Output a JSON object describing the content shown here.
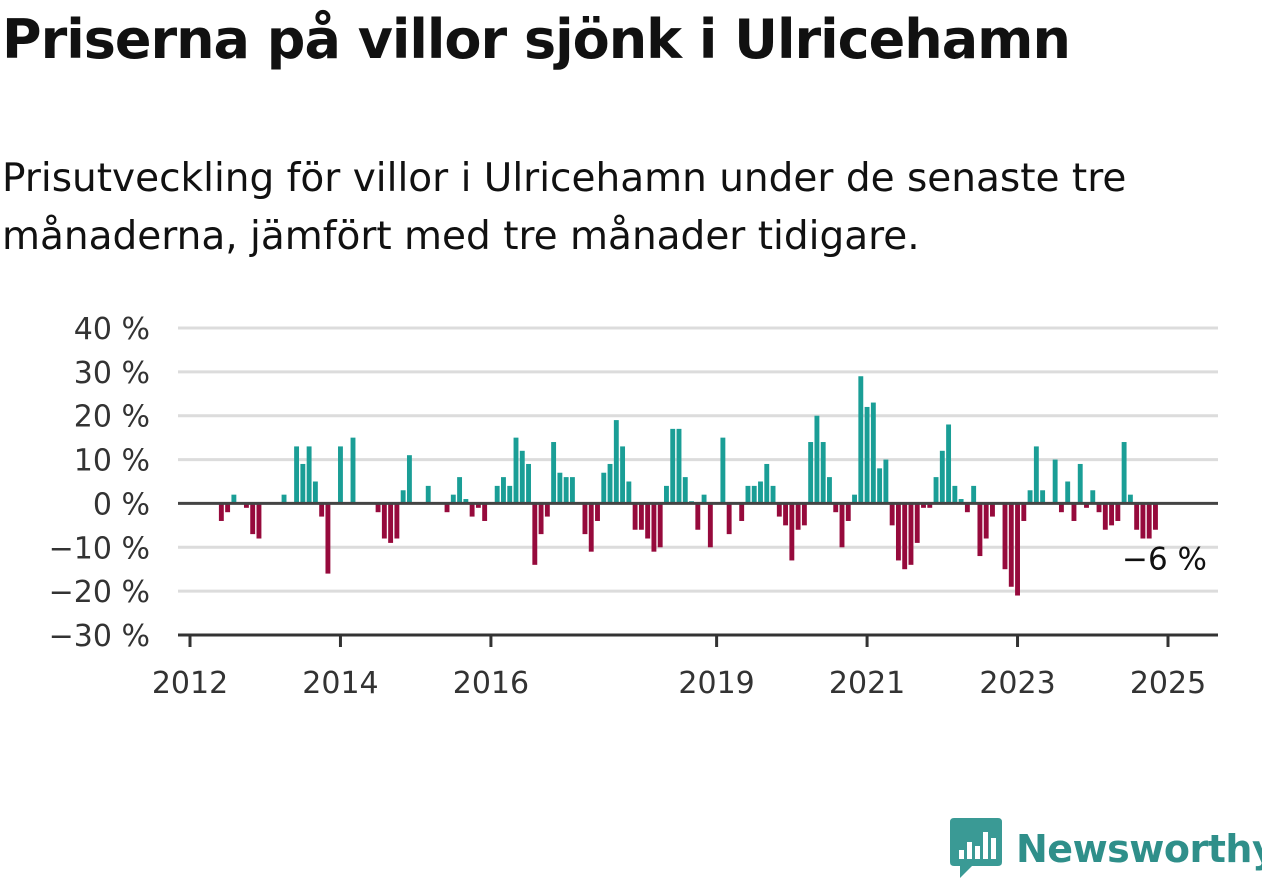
{
  "header": {
    "title": "Priserna på villor sjönk i Ulricehamn",
    "subtitle": "Prisutveckling för villor i Ulricehamn under de senaste tre månaderna, jämfört med tre månader tidigare."
  },
  "brand": {
    "name": "Newsworthy",
    "color": "#3a9a95"
  },
  "chart_data": {
    "type": "bar",
    "title": "",
    "xlabel": "",
    "ylabel": "",
    "ylim": [
      -30,
      40
    ],
    "y_ticks": [
      40,
      30,
      20,
      10,
      0,
      -10,
      -20,
      -30
    ],
    "y_tick_labels": [
      "40 %",
      "30 %",
      "20 %",
      "10 %",
      "0 %",
      "−10 %",
      "−20 %",
      "−30 %"
    ],
    "x_ticks": [
      2012,
      2014,
      2016,
      2019,
      2021,
      2023,
      2025
    ],
    "x_tick_labels": [
      "2012",
      "2014",
      "2016",
      "2019",
      "2021",
      "2023",
      "2025"
    ],
    "grid": true,
    "positive_color": "#1a9e96",
    "negative_color": "#960a3c",
    "annotation": {
      "text": "−6 %"
    },
    "series": [
      {
        "values": [
          {
            "date": "2012-06",
            "value": -4
          },
          {
            "date": "2012-07",
            "value": -2
          },
          {
            "date": "2012-08",
            "value": 2
          },
          {
            "date": "2012-10",
            "value": -1
          },
          {
            "date": "2012-11",
            "value": -7
          },
          {
            "date": "2012-12",
            "value": -8
          },
          {
            "date": "2013-04",
            "value": 2
          },
          {
            "date": "2013-06",
            "value": 13
          },
          {
            "date": "2013-07",
            "value": 9
          },
          {
            "date": "2013-08",
            "value": 13
          },
          {
            "date": "2013-09",
            "value": 5
          },
          {
            "date": "2013-10",
            "value": -3
          },
          {
            "date": "2013-11",
            "value": -16
          },
          {
            "date": "2014-01",
            "value": 13
          },
          {
            "date": "2014-03",
            "value": 15
          },
          {
            "date": "2014-07",
            "value": -2
          },
          {
            "date": "2014-08",
            "value": -8
          },
          {
            "date": "2014-09",
            "value": -9
          },
          {
            "date": "2014-10",
            "value": -8
          },
          {
            "date": "2014-11",
            "value": 3
          },
          {
            "date": "2014-12",
            "value": 11
          },
          {
            "date": "2015-03",
            "value": 4
          },
          {
            "date": "2015-06",
            "value": -2
          },
          {
            "date": "2015-07",
            "value": 2
          },
          {
            "date": "2015-08",
            "value": 6
          },
          {
            "date": "2015-09",
            "value": 1
          },
          {
            "date": "2015-10",
            "value": -3
          },
          {
            "date": "2015-11",
            "value": -1
          },
          {
            "date": "2015-12",
            "value": -4
          },
          {
            "date": "2016-02",
            "value": 4
          },
          {
            "date": "2016-03",
            "value": 6
          },
          {
            "date": "2016-04",
            "value": 4
          },
          {
            "date": "2016-05",
            "value": 15
          },
          {
            "date": "2016-06",
            "value": 12
          },
          {
            "date": "2016-07",
            "value": 9
          },
          {
            "date": "2016-08",
            "value": -14
          },
          {
            "date": "2016-09",
            "value": -7
          },
          {
            "date": "2016-10",
            "value": -3
          },
          {
            "date": "2016-11",
            "value": 14
          },
          {
            "date": "2016-12",
            "value": 7
          },
          {
            "date": "2017-01",
            "value": 6
          },
          {
            "date": "2017-02",
            "value": 6
          },
          {
            "date": "2017-04",
            "value": -7
          },
          {
            "date": "2017-05",
            "value": -11
          },
          {
            "date": "2017-06",
            "value": -4
          },
          {
            "date": "2017-07",
            "value": 7
          },
          {
            "date": "2017-08",
            "value": 9
          },
          {
            "date": "2017-09",
            "value": 19
          },
          {
            "date": "2017-10",
            "value": 13
          },
          {
            "date": "2017-11",
            "value": 5
          },
          {
            "date": "2017-12",
            "value": -6
          },
          {
            "date": "2018-01",
            "value": -6
          },
          {
            "date": "2018-02",
            "value": -8
          },
          {
            "date": "2018-03",
            "value": -11
          },
          {
            "date": "2018-04",
            "value": -10
          },
          {
            "date": "2018-05",
            "value": 4
          },
          {
            "date": "2018-06",
            "value": 17
          },
          {
            "date": "2018-07",
            "value": 17
          },
          {
            "date": "2018-08",
            "value": 6
          },
          {
            "date": "2018-09",
            "value": 0.5
          },
          {
            "date": "2018-10",
            "value": -6
          },
          {
            "date": "2018-11",
            "value": 2
          },
          {
            "date": "2018-12",
            "value": -10
          },
          {
            "date": "2019-02",
            "value": 15
          },
          {
            "date": "2019-03",
            "value": -7
          },
          {
            "date": "2019-05",
            "value": -4
          },
          {
            "date": "2019-06",
            "value": 4
          },
          {
            "date": "2019-07",
            "value": 4
          },
          {
            "date": "2019-08",
            "value": 5
          },
          {
            "date": "2019-09",
            "value": 9
          },
          {
            "date": "2019-10",
            "value": 4
          },
          {
            "date": "2019-11",
            "value": -3
          },
          {
            "date": "2019-12",
            "value": -5
          },
          {
            "date": "2020-01",
            "value": -13
          },
          {
            "date": "2020-02",
            "value": -6
          },
          {
            "date": "2020-03",
            "value": -5
          },
          {
            "date": "2020-04",
            "value": 14
          },
          {
            "date": "2020-05",
            "value": 20
          },
          {
            "date": "2020-06",
            "value": 14
          },
          {
            "date": "2020-07",
            "value": 6
          },
          {
            "date": "2020-08",
            "value": -2
          },
          {
            "date": "2020-09",
            "value": -10
          },
          {
            "date": "2020-10",
            "value": -4
          },
          {
            "date": "2020-11",
            "value": 2
          },
          {
            "date": "2020-12",
            "value": 29
          },
          {
            "date": "2021-01",
            "value": 22
          },
          {
            "date": "2021-02",
            "value": 23
          },
          {
            "date": "2021-03",
            "value": 8
          },
          {
            "date": "2021-04",
            "value": 10
          },
          {
            "date": "2021-05",
            "value": -5
          },
          {
            "date": "2021-06",
            "value": -13
          },
          {
            "date": "2021-07",
            "value": -15
          },
          {
            "date": "2021-08",
            "value": -14
          },
          {
            "date": "2021-09",
            "value": -9
          },
          {
            "date": "2021-10",
            "value": -1
          },
          {
            "date": "2021-11",
            "value": -1
          },
          {
            "date": "2021-12",
            "value": 6
          },
          {
            "date": "2022-01",
            "value": 12
          },
          {
            "date": "2022-02",
            "value": 18
          },
          {
            "date": "2022-03",
            "value": 4
          },
          {
            "date": "2022-04",
            "value": 1
          },
          {
            "date": "2022-05",
            "value": -2
          },
          {
            "date": "2022-06",
            "value": 4
          },
          {
            "date": "2022-07",
            "value": -12
          },
          {
            "date": "2022-08",
            "value": -8
          },
          {
            "date": "2022-09",
            "value": -3
          },
          {
            "date": "2022-11",
            "value": -15
          },
          {
            "date": "2022-12",
            "value": -19
          },
          {
            "date": "2023-01",
            "value": -21
          },
          {
            "date": "2023-02",
            "value": -4
          },
          {
            "date": "2023-03",
            "value": 3
          },
          {
            "date": "2023-04",
            "value": 13
          },
          {
            "date": "2023-05",
            "value": 3
          },
          {
            "date": "2023-07",
            "value": 10
          },
          {
            "date": "2023-08",
            "value": -2
          },
          {
            "date": "2023-09",
            "value": 5
          },
          {
            "date": "2023-10",
            "value": -4
          },
          {
            "date": "2023-11",
            "value": 9
          },
          {
            "date": "2023-12",
            "value": -1
          },
          {
            "date": "2024-01",
            "value": 3
          },
          {
            "date": "2024-02",
            "value": -2
          },
          {
            "date": "2024-03",
            "value": -6
          },
          {
            "date": "2024-04",
            "value": -5
          },
          {
            "date": "2024-05",
            "value": -4
          },
          {
            "date": "2024-06",
            "value": 14
          },
          {
            "date": "2024-07",
            "value": 2
          },
          {
            "date": "2024-08",
            "value": -6
          },
          {
            "date": "2024-09",
            "value": -8
          },
          {
            "date": "2024-10",
            "value": -8
          },
          {
            "date": "2024-11",
            "value": -6
          }
        ]
      }
    ]
  }
}
